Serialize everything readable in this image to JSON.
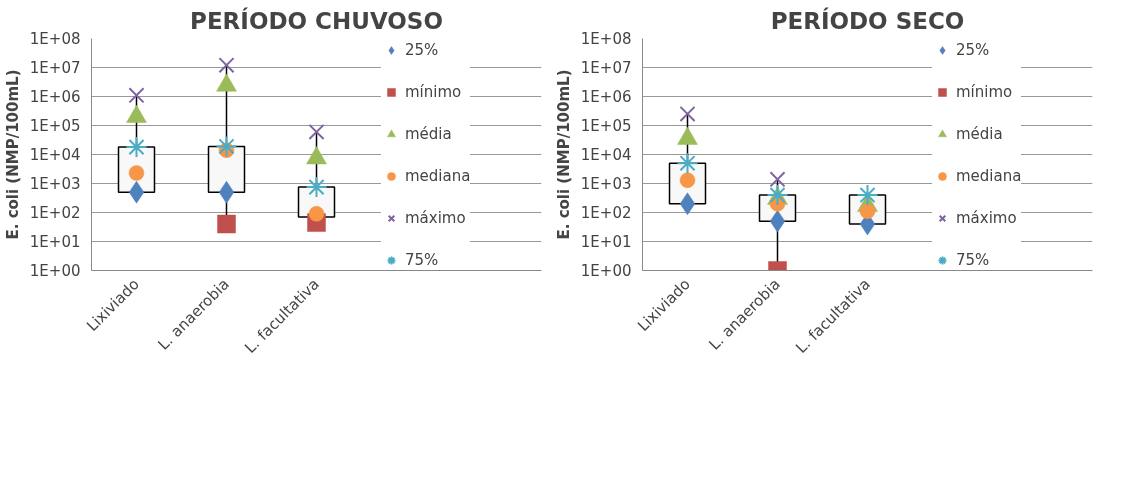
{
  "chart_data": [
    {
      "type": "box",
      "title": "PERÍODO CHUVOSO",
      "ylabel": "E. coli (NMP/100mL)",
      "categories": [
        "Lixiviado",
        "L. anaerobia",
        "L. facultativa"
      ],
      "log": true,
      "ylim": [
        1,
        100000000
      ],
      "yticks": [
        {
          "value": 1,
          "label": "1E+00"
        },
        {
          "value": 10,
          "label": "1E+01"
        },
        {
          "value": 100,
          "label": "1E+02"
        },
        {
          "value": 1000,
          "label": "1E+03"
        },
        {
          "value": 10000,
          "label": "1E+04"
        },
        {
          "value": 100000,
          "label": "1E+05"
        },
        {
          "value": 1000000,
          "label": "1E+06"
        },
        {
          "value": 10000000,
          "label": "1E+07"
        },
        {
          "value": 100000000,
          "label": "1E+08"
        }
      ],
      "grid": "y",
      "legend": "right",
      "boxes": [
        {
          "low": null,
          "q1": 500,
          "q3": 18000,
          "high": 1100000
        },
        {
          "low": 40,
          "q1": 500,
          "q3": 19000,
          "high": 12000000
        },
        {
          "low": 45,
          "q1": 70,
          "q3": 750,
          "high": 60000
        }
      ],
      "series": [
        {
          "name": "25%",
          "type": "scatter",
          "color": "#4f81bd",
          "marker": "diamond",
          "values": [
            500,
            500,
            null
          ]
        },
        {
          "name": "mínimo",
          "type": "scatter",
          "color": "#c0504d",
          "marker": "square",
          "values": [
            null,
            40,
            45
          ]
        },
        {
          "name": "média",
          "type": "scatter",
          "color": "#9bbb59",
          "marker": "triangle",
          "values": [
            200000,
            2400000,
            7500
          ]
        },
        {
          "name": "mediana",
          "type": "scatter",
          "color": "#f79646",
          "marker": "circle",
          "values": [
            2300,
            14000,
            90
          ]
        },
        {
          "name": "máximo",
          "type": "scatter",
          "color": "#8064a2",
          "marker": "x",
          "values": [
            1100000,
            12000000,
            60000
          ]
        },
        {
          "name": "75%",
          "type": "scatter",
          "color": "#4bacc6",
          "marker": "cross",
          "values": [
            18000,
            19000,
            750
          ]
        }
      ]
    },
    {
      "type": "box",
      "title": "PERÍODO SECO",
      "ylabel": "E. coli (NMP/100mL)",
      "categories": [
        "Lixiviado",
        "L. anaerobia",
        "L. facultativa"
      ],
      "log": true,
      "ylim": [
        1,
        100000000
      ],
      "yticks": [
        {
          "value": 1,
          "label": "1E+00"
        },
        {
          "value": 10,
          "label": "1E+01"
        },
        {
          "value": 100,
          "label": "1E+02"
        },
        {
          "value": 1000,
          "label": "1E+03"
        },
        {
          "value": 10000,
          "label": "1E+04"
        },
        {
          "value": 100000,
          "label": "1E+05"
        },
        {
          "value": 1000000,
          "label": "1E+06"
        },
        {
          "value": 10000000,
          "label": "1E+07"
        },
        {
          "value": 100000000,
          "label": "1E+08"
        }
      ],
      "grid": "y",
      "legend": "right",
      "boxes": [
        {
          "low": null,
          "q1": 200,
          "q3": 5000,
          "high": 250000
        },
        {
          "low": 1,
          "q1": 50,
          "q3": 400,
          "high": 1400
        },
        {
          "low": null,
          "q1": 40,
          "q3": 400,
          "high": null
        }
      ],
      "series": [
        {
          "name": "25%",
          "type": "scatter",
          "color": "#4f81bd",
          "marker": "diamond",
          "values": [
            200,
            50,
            40
          ]
        },
        {
          "name": "mínimo",
          "type": "scatter",
          "color": "#c0504d",
          "marker": "square",
          "values": [
            null,
            1,
            null
          ]
        },
        {
          "name": "média",
          "type": "scatter",
          "color": "#9bbb59",
          "marker": "triangle",
          "values": [
            35000,
            300,
            170
          ]
        },
        {
          "name": "mediana",
          "type": "scatter",
          "color": "#f79646",
          "marker": "circle",
          "values": [
            1300,
            200,
            110
          ]
        },
        {
          "name": "máximo",
          "type": "scatter",
          "color": "#8064a2",
          "marker": "x",
          "values": [
            250000,
            1400,
            null
          ]
        },
        {
          "name": "75%",
          "type": "scatter",
          "color": "#4bacc6",
          "marker": "cross",
          "values": [
            5000,
            400,
            400
          ]
        }
      ]
    }
  ]
}
